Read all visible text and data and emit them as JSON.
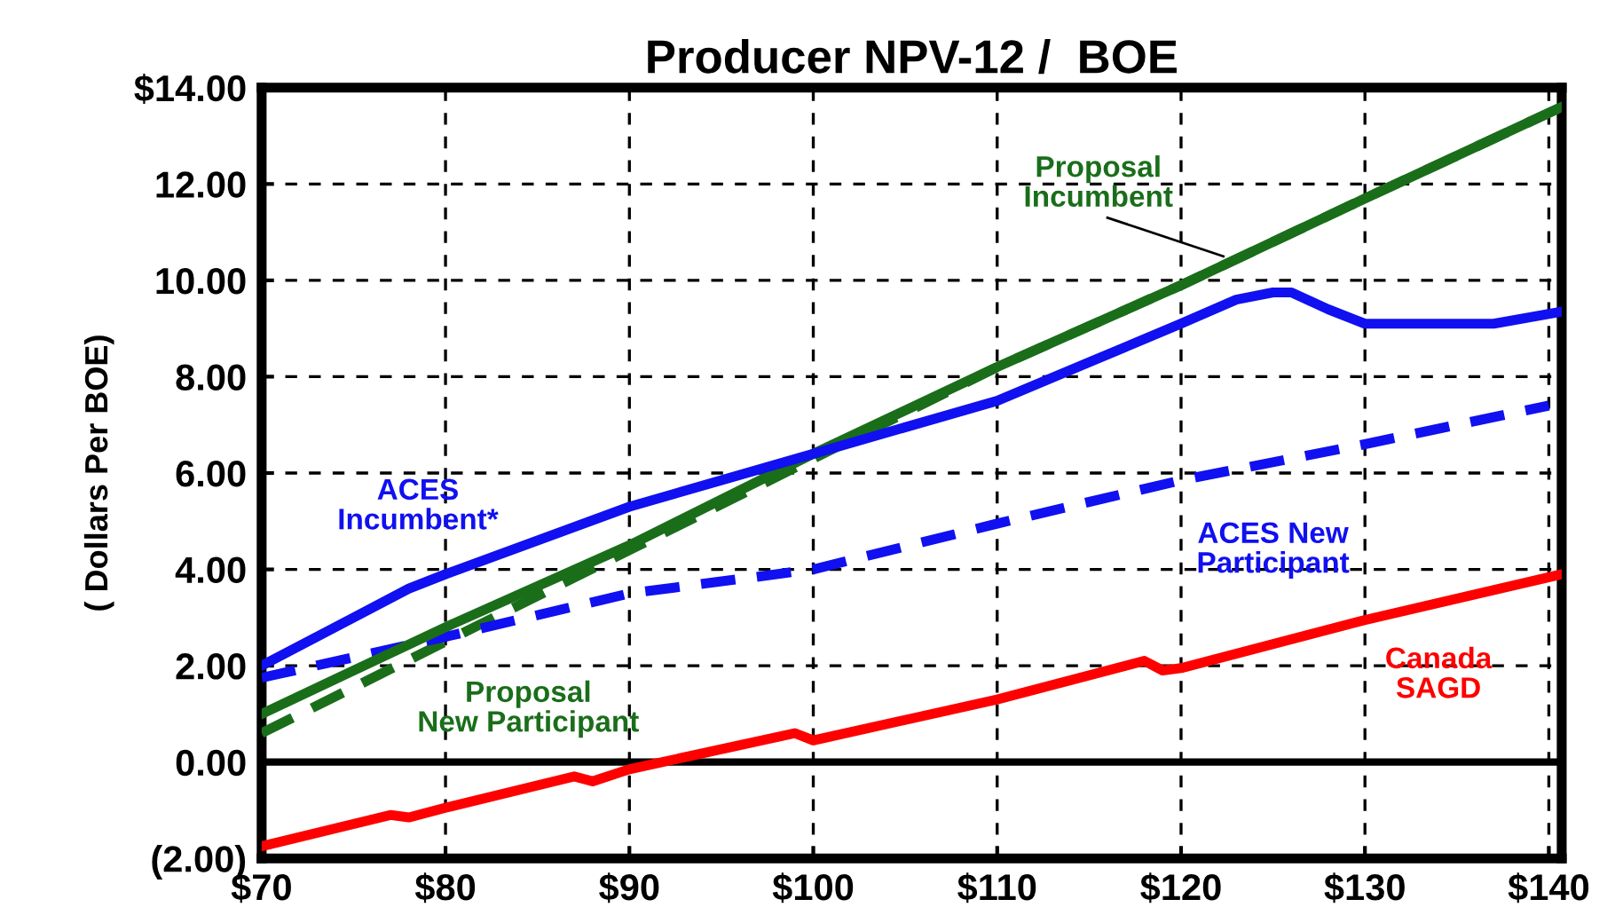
{
  "chart_data": {
    "type": "line",
    "title": "Producer NPV-12 /  BOE",
    "ylabel": "( Dollars Per BOE)",
    "xlim": [
      70,
      140.7
    ],
    "ylim": [
      -2,
      14
    ],
    "xticks": [
      {
        "value": 70,
        "label": "$70"
      },
      {
        "value": 80,
        "label": "$80"
      },
      {
        "value": 90,
        "label": "$90"
      },
      {
        "value": 100,
        "label": "$100"
      },
      {
        "value": 110,
        "label": "$110"
      },
      {
        "value": 120,
        "label": "$120"
      },
      {
        "value": 130,
        "label": "$130"
      },
      {
        "value": 140,
        "label": "$140"
      }
    ],
    "yticks": [
      {
        "value": -2,
        "label": "(2.00)"
      },
      {
        "value": 0,
        "label": "0.00"
      },
      {
        "value": 2,
        "label": "2.00"
      },
      {
        "value": 4,
        "label": "4.00"
      },
      {
        "value": 6,
        "label": "6.00"
      },
      {
        "value": 8,
        "label": "8.00"
      },
      {
        "value": 10,
        "label": "10.00"
      },
      {
        "value": 12,
        "label": "12.00"
      },
      {
        "value": 14,
        "label": "$14.00"
      }
    ],
    "grid": true,
    "legend": false,
    "ref_lines": [
      {
        "axis": "y",
        "value": 0,
        "color": "#000000"
      }
    ],
    "series": [
      {
        "name": "Proposal Incumbent",
        "color": "#1a6e1a",
        "line_style": "solid",
        "x": [
          70,
          80,
          90,
          100,
          110,
          120,
          130,
          140.7
        ],
        "values": [
          1.0,
          2.8,
          4.5,
          6.4,
          8.2,
          9.9,
          11.7,
          13.6
        ]
      },
      {
        "name": "Proposal New Participant",
        "color": "#1a6e1a",
        "line_style": "dashed",
        "x": [
          70,
          80,
          90,
          100,
          110,
          120,
          130,
          140.7
        ],
        "values": [
          0.6,
          2.5,
          4.4,
          6.3,
          8.2,
          9.9,
          11.7,
          13.6
        ]
      },
      {
        "name": "ACES Incumbent*",
        "color": "#1010f0",
        "line_style": "solid",
        "x": [
          70,
          75,
          78,
          80,
          90,
          100,
          110,
          115,
          120,
          123,
          125,
          126,
          128,
          130,
          137,
          140.7
        ],
        "values": [
          2.0,
          3.0,
          3.6,
          3.9,
          5.3,
          6.4,
          7.5,
          8.3,
          9.1,
          9.6,
          9.75,
          9.75,
          9.4,
          9.1,
          9.1,
          9.35
        ]
      },
      {
        "name": "ACES New Participant",
        "color": "#1010f0",
        "line_style": "dashed",
        "x": [
          70,
          80,
          90,
          100,
          110,
          120,
          130,
          140
        ],
        "values": [
          1.75,
          2.6,
          3.5,
          4.0,
          4.95,
          5.85,
          6.6,
          7.4
        ]
      },
      {
        "name": "Canada SAGD",
        "color": "#ff0000",
        "line_style": "solid",
        "x": [
          70,
          77,
          78,
          80,
          87,
          88,
          90,
          99,
          100,
          110,
          118,
          119,
          120,
          130,
          140.7
        ],
        "values": [
          -1.75,
          -1.1,
          -1.15,
          -0.95,
          -0.3,
          -0.4,
          -0.15,
          0.6,
          0.45,
          1.3,
          2.1,
          1.9,
          1.95,
          2.95,
          3.9
        ]
      }
    ]
  }
}
